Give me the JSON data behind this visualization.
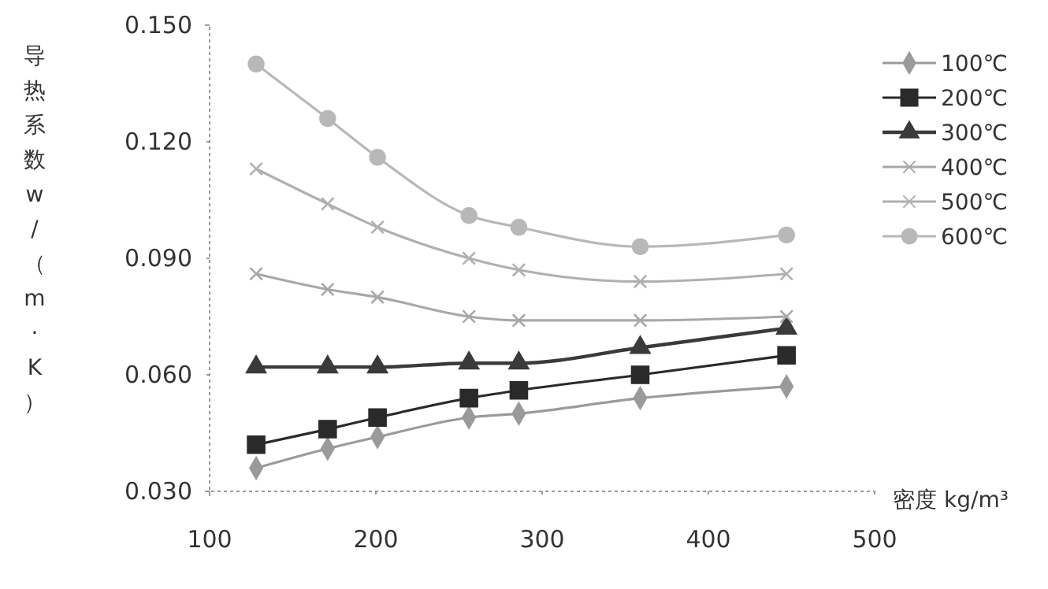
{
  "chart_data": {
    "type": "line",
    "xlabel": "密度  kg/m³",
    "ylabel": "导热系数w/（m·K）",
    "xlim": [
      100,
      500
    ],
    "xticks": [
      100,
      200,
      300,
      400,
      500
    ],
    "ylim": [
      0.03,
      0.15
    ],
    "yticks": [
      {
        "value": 0.03,
        "label": "0.030"
      },
      {
        "value": 0.06,
        "label": "0.060"
      },
      {
        "value": 0.09,
        "label": "0.090"
      },
      {
        "value": 0.12,
        "label": "0.120"
      },
      {
        "value": 0.15,
        "label": "0.150"
      }
    ],
    "x": [
      128,
      171,
      201,
      256,
      286,
      359,
      447
    ],
    "grid": false,
    "legend": "right",
    "line_style": "solid",
    "series": [
      {
        "name": "100℃",
        "color": "#9a9a9a",
        "marker": "diamond",
        "values": [
          0.036,
          0.041,
          0.044,
          0.049,
          0.05,
          0.054,
          0.057
        ]
      },
      {
        "name": "200℃",
        "color": "#2a2a2a",
        "marker": "square",
        "values": [
          0.042,
          0.046,
          0.049,
          0.054,
          0.056,
          0.06,
          0.065
        ]
      },
      {
        "name": "300℃",
        "color": "#3a3a3a",
        "marker": "triangle",
        "values": [
          0.062,
          0.062,
          0.062,
          0.063,
          0.063,
          0.067,
          0.072
        ]
      },
      {
        "name": "400℃",
        "color": "#a8a8a8",
        "marker": "cross",
        "values": [
          0.086,
          0.082,
          0.08,
          0.075,
          0.074,
          0.074,
          0.075
        ]
      },
      {
        "name": "500℃",
        "color": "#b0b0b0",
        "marker": "cross",
        "values": [
          0.113,
          0.104,
          0.098,
          0.09,
          0.087,
          0.084,
          0.086
        ]
      },
      {
        "name": "600℃",
        "color": "#b8b8b8",
        "marker": "circle",
        "values": [
          0.14,
          0.126,
          0.116,
          0.101,
          0.098,
          0.093,
          0.096
        ]
      }
    ]
  }
}
